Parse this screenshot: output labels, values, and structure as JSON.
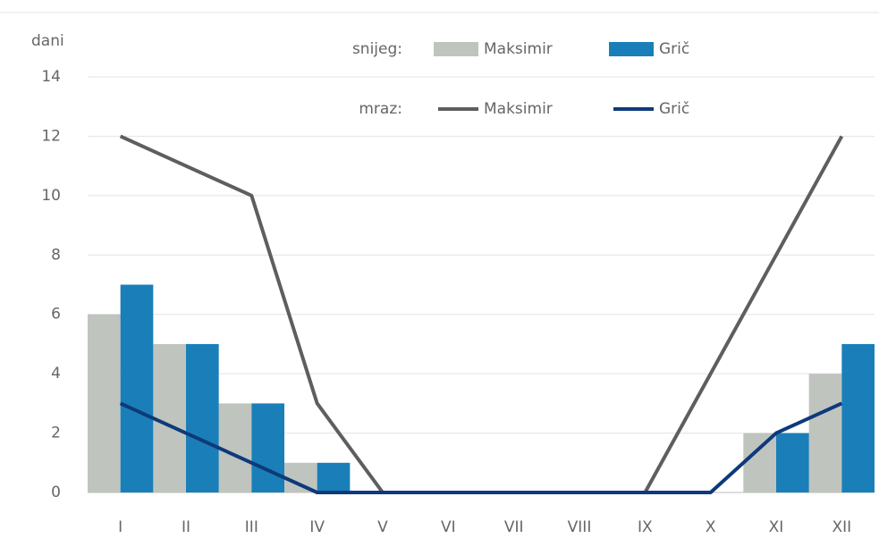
{
  "chart_data": {
    "type": "bar",
    "y_label": "dani",
    "legend_titles": [
      "snijeg:",
      "mraz:"
    ],
    "categories": [
      "I",
      "II",
      "III",
      "IV",
      "V",
      "VI",
      "VII",
      "VIII",
      "IX",
      "X",
      "XI",
      "XII"
    ],
    "series": [
      {
        "name": "Maksimir",
        "kind": "bar",
        "color": "#bfc4bf",
        "values": [
          6,
          5,
          3,
          1,
          0,
          0,
          0,
          0,
          0,
          0,
          2,
          4
        ]
      },
      {
        "name": "Grič",
        "kind": "bar",
        "color": "#1a7fb8",
        "values": [
          7,
          5,
          3,
          1,
          0,
          0,
          0,
          0,
          0,
          0,
          2,
          5
        ]
      },
      {
        "name": "Maksimir",
        "kind": "line",
        "color": "#5e5e5e",
        "values": [
          12,
          11,
          10,
          3,
          0,
          0,
          0,
          0,
          0,
          4,
          8,
          12
        ]
      },
      {
        "name": "Grič",
        "kind": "line",
        "color": "#0d3a7a",
        "values": [
          3,
          2,
          1,
          0,
          0,
          0,
          0,
          0,
          0,
          0,
          2,
          3
        ]
      }
    ],
    "ylim": [
      0,
      14
    ],
    "yticks": [
      0,
      2,
      4,
      6,
      8,
      10,
      12,
      14
    ],
    "grid": true
  }
}
